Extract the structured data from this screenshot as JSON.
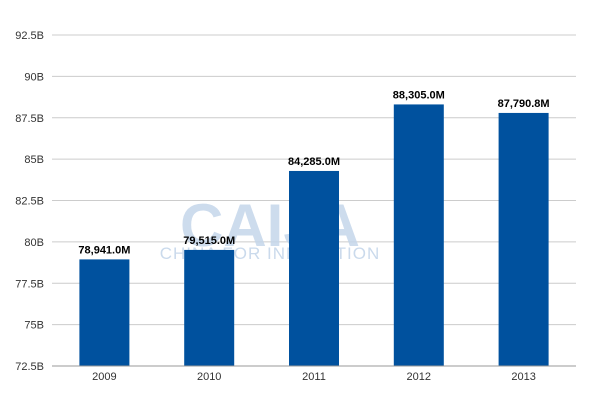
{
  "chart_data": {
    "type": "bar",
    "categories": [
      "2009",
      "2010",
      "2011",
      "2012",
      "2013"
    ],
    "values": [
      78941.0,
      79515.0,
      84285.0,
      88305.0,
      87790.8
    ],
    "data_labels": [
      "78,941.0M",
      "79,515.0M",
      "84,285.0M",
      "88,305.0M",
      "87,790.8M"
    ],
    "yticks": [
      72500,
      75000,
      77500,
      80000,
      82500,
      85000,
      87500,
      90000,
      92500
    ],
    "ytick_labels": [
      "72.5B",
      "75B",
      "77.5B",
      "80B",
      "82.5B",
      "85B",
      "87.5B",
      "90B",
      "92.5B"
    ],
    "ylim": [
      72500,
      92500
    ],
    "grid": true,
    "legend": "none",
    "bar_color": "#00519e",
    "grid_color": "#cccccc"
  },
  "watermark": {
    "main": "CAIJA",
    "sub": "CHINA FOR INNOVATION"
  }
}
